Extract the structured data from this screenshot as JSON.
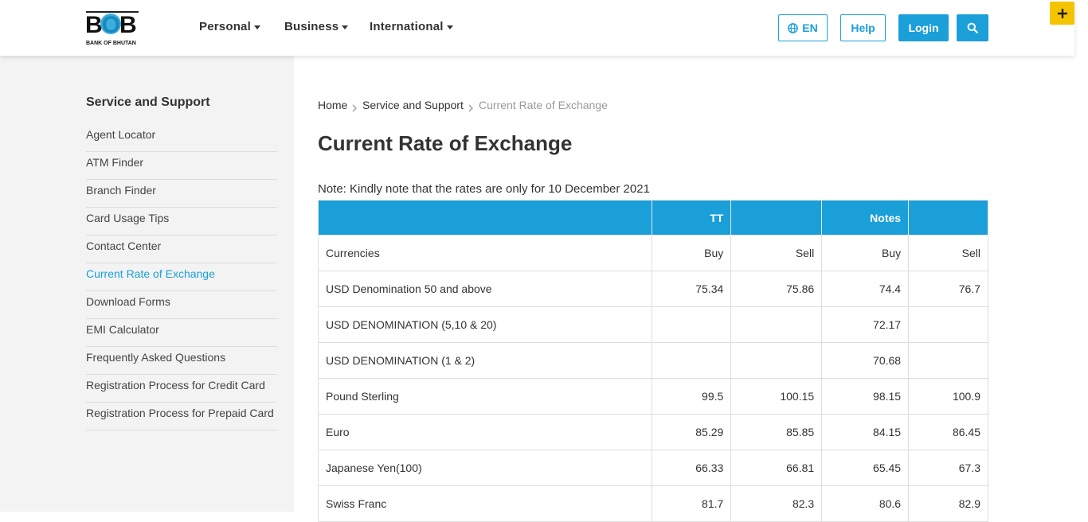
{
  "header": {
    "logo": {
      "abbr": "BOB",
      "name": "BANK OF BHUTAN"
    },
    "nav": [
      "Personal",
      "Business",
      "International"
    ],
    "language": "EN",
    "help": "Help",
    "login": "Login"
  },
  "sidebar": {
    "title": "Service and Support",
    "items": [
      "Agent Locator",
      "ATM Finder",
      "Branch Finder",
      "Card Usage Tips",
      "Contact Center",
      "Current Rate of Exchange",
      "Download Forms",
      "EMI Calculator",
      "Frequently Asked Questions",
      "Registration Process for Credit Card",
      "Registration Process for Prepaid Card"
    ]
  },
  "breadcrumb": [
    "Home",
    "Service and Support",
    "Current Rate of Exchange"
  ],
  "title": "Current Rate of Exchange",
  "note": "Note: Kindly note that the rates are only for 10 December 2021",
  "table": {
    "header": [
      null,
      "TT",
      null,
      "Notes",
      null
    ],
    "rows": [
      [
        "Currencies",
        "Buy",
        "Sell",
        "Buy",
        "Sell"
      ],
      [
        "USD Denomination 50 and above",
        "75.34",
        "75.86",
        "74.4",
        "76.7"
      ],
      [
        "USD DENOMINATION (5,10 & 20)",
        null,
        null,
        "72.17",
        null
      ],
      [
        "USD DENOMINATION (1 & 2)",
        null,
        null,
        "70.68",
        null
      ],
      [
        "Pound Sterling",
        "99.5",
        "100.15",
        "98.15",
        "100.9"
      ],
      [
        "Euro",
        "85.29",
        "85.85",
        "84.15",
        "86.45"
      ],
      [
        "Japanese Yen(100)",
        "66.33",
        "66.81",
        "65.45",
        "67.3"
      ],
      [
        "Swiss Franc",
        "81.7",
        "82.3",
        "80.6",
        "82.9"
      ]
    ]
  }
}
